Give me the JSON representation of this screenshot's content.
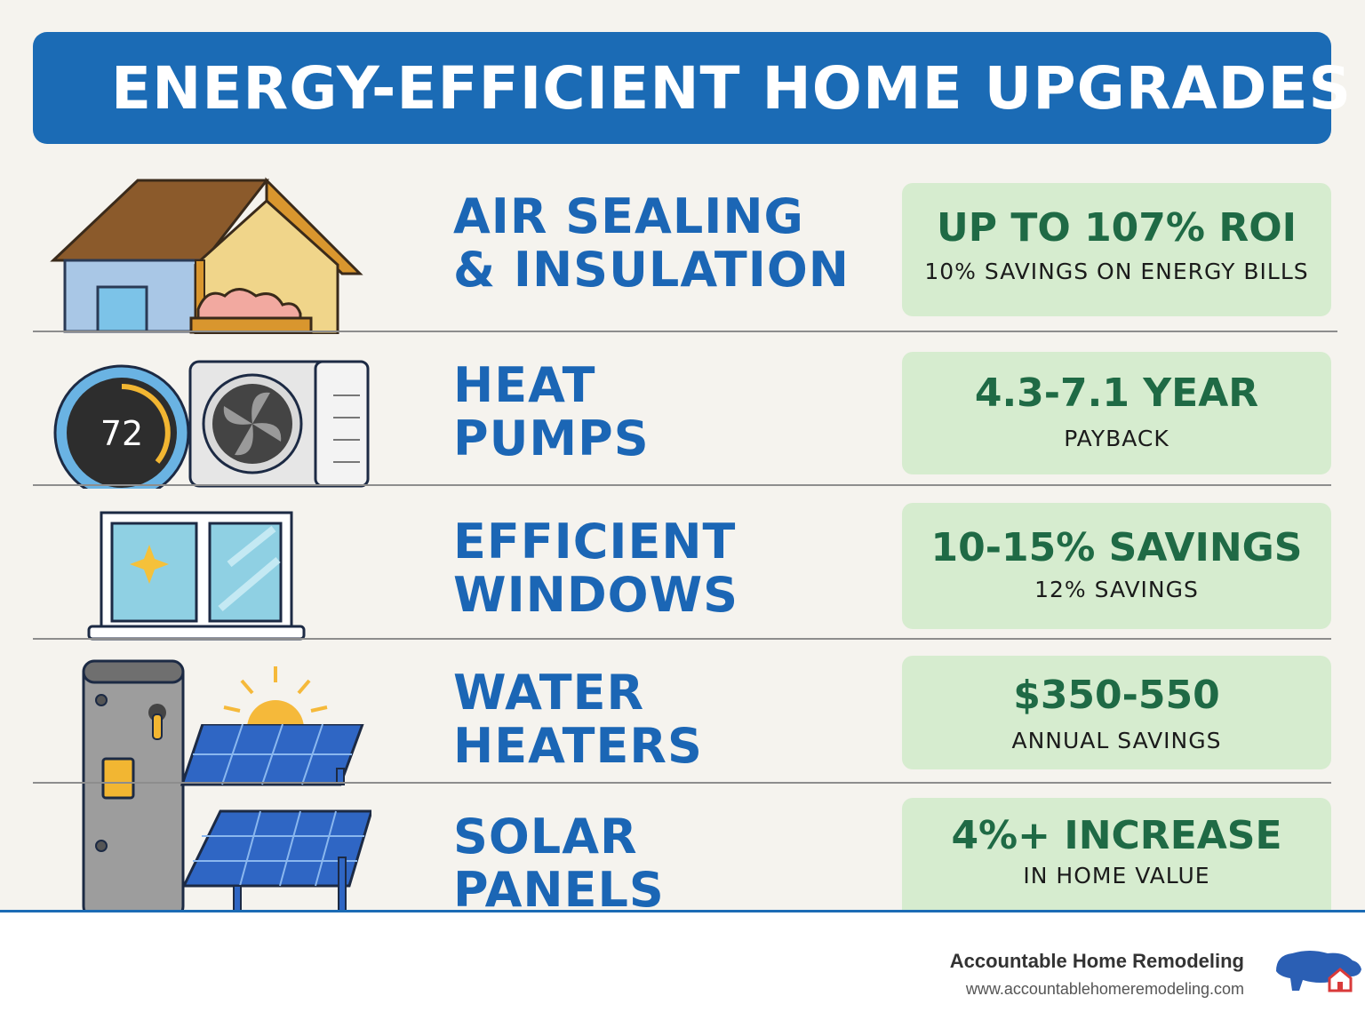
{
  "header": {
    "title": "ENERGY-EFFICIENT HOME UPGRADES"
  },
  "upgrades": [
    {
      "label_line1": "AIR SEALING",
      "label_line2": "& INSULATION",
      "headline": "UP TO 107% ROI",
      "detail": "10% SAVINGS ON ENERGY BILLS",
      "icon": "house-insulation-icon"
    },
    {
      "label_line1": "HEAT",
      "label_line2": "PUMPS",
      "headline": "4.3-7.1 YEAR",
      "detail": "PAYBACK",
      "icon": "heat-pump-icon",
      "thermostat_reading": "72"
    },
    {
      "label_line1": "EFFICIENT",
      "label_line2": "WINDOWS",
      "headline": "10-15% SAVINGS",
      "detail": "12% SAVINGS",
      "icon": "window-icon"
    },
    {
      "label_line1": "WATER",
      "label_line2": "HEATERS",
      "headline": "$350-550",
      "detail": "ANNUAL SAVINGS",
      "icon": "water-heater-icon"
    },
    {
      "label_line1": "SOLAR",
      "label_line2": "PANELS",
      "headline": "4%+ INCREASE",
      "detail": "IN HOME VALUE",
      "icon": "solar-panel-icon"
    }
  ],
  "footer": {
    "company": "Accountable Home Remodeling",
    "website": "www.accountablehomeremodeling.com",
    "logo_icon": "buffalo-house-logo-icon"
  },
  "colors": {
    "banner": "#1b6bb5",
    "label": "#1b66b5",
    "headline": "#1f6a45",
    "box": "#d6eccf",
    "background": "#f5f3ee"
  }
}
